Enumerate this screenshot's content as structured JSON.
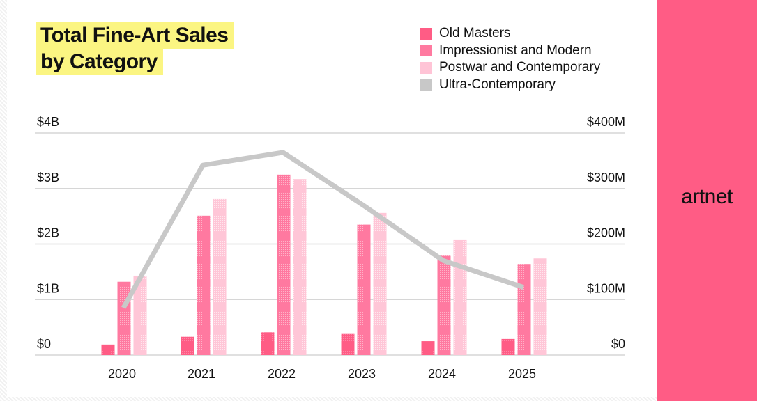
{
  "colors": {
    "old_masters": "#ff5c85",
    "impressionist_modern": "#ff7aa0",
    "postwar_contemporary": "#ffc4d6",
    "ultra_contemporary": "#c8c8c8",
    "title_highlight": "#fbf582",
    "brand_panel": "#ff5c85"
  },
  "brand": {
    "logo_text": "artnet"
  },
  "chart_data": {
    "type": "bar",
    "title_lines": [
      "Total Fine-Art Sales",
      "by Category"
    ],
    "categories": [
      "2020",
      "2021",
      "2022",
      "2023",
      "2024",
      "2025"
    ],
    "y_left": {
      "min": 0,
      "max": 4,
      "unit": "B",
      "ticks": [
        "$0",
        "$1B",
        "$2B",
        "$3B",
        "$4B"
      ]
    },
    "y_right": {
      "min": 0,
      "max": 400,
      "unit": "M",
      "ticks": [
        "$0",
        "$100M",
        "$200M",
        "$300M",
        "$400M"
      ]
    },
    "grid": true,
    "legend_position": "top-right",
    "legend": [
      "Old Masters",
      "Impressionist and Modern",
      "Postwar and Contemporary",
      "Ultra-Contemporary"
    ],
    "series": [
      {
        "name": "Old Masters",
        "type": "bar",
        "axis": "left",
        "values": [
          0.19,
          0.33,
          0.41,
          0.38,
          0.25,
          0.29
        ]
      },
      {
        "name": "Impressionist and Modern",
        "type": "bar",
        "axis": "left",
        "values": [
          1.32,
          2.51,
          3.25,
          2.35,
          1.79,
          1.64
        ]
      },
      {
        "name": "Postwar and Contemporary",
        "type": "bar",
        "axis": "left",
        "values": [
          1.43,
          2.81,
          3.17,
          2.56,
          2.07,
          1.74
        ]
      },
      {
        "name": "Ultra-Contemporary",
        "type": "line",
        "axis": "right",
        "values": [
          85,
          342,
          365,
          270,
          170,
          122
        ]
      }
    ]
  }
}
